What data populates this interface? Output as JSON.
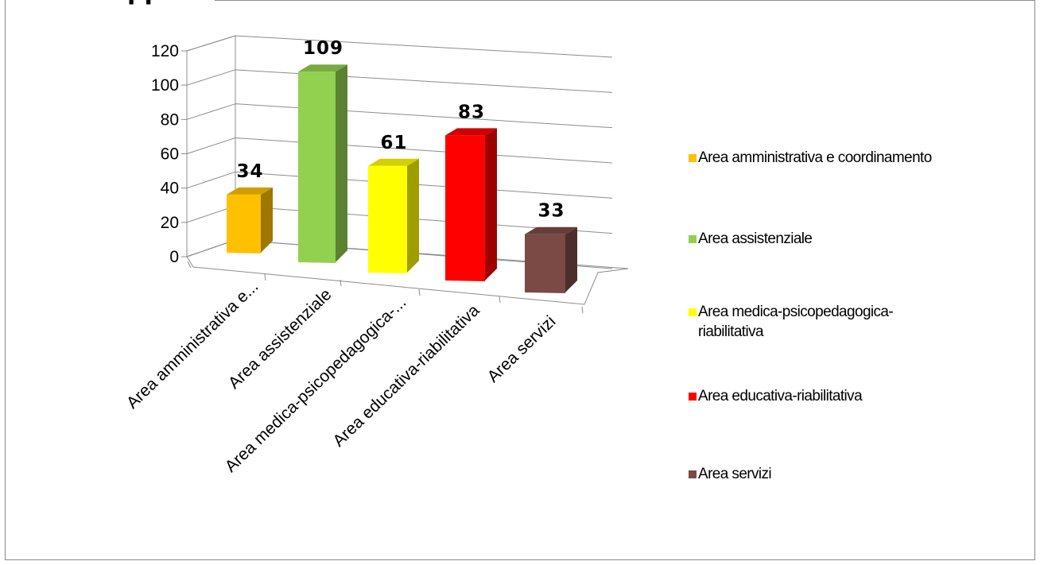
{
  "title_fragment": "pp",
  "chart_data": {
    "type": "bar",
    "three_d": true,
    "categories": [
      "Area amministrativa e coordinamento",
      "Area assistenziale",
      "Area medica-psicopedagogica-riabilitativa",
      "Area educativa-riabilitativa",
      "Area servizi"
    ],
    "category_labels": [
      "Area amministrativa e...",
      "Area assistenziale",
      "Area medica-psicopedagogica-...",
      "Area educativa-riabilitativa",
      "Area servizi"
    ],
    "values": [
      34,
      109,
      61,
      83,
      33
    ],
    "data_labels": [
      "34",
      "109",
      "61",
      "83",
      "33"
    ],
    "colors": [
      "#ffc000",
      "#92d050",
      "#ffff00",
      "#ff0000",
      "#7b4a45"
    ],
    "ylim": [
      0,
      120
    ],
    "yticks": [
      "0",
      "20",
      "40",
      "60",
      "80",
      "100",
      "120"
    ],
    "grid": true,
    "legend_position": "right",
    "legend": [
      "Area amministrativa e coordinamento",
      "Area assistenziale",
      "Area medica-psicopedagogica-riabilitativa",
      "Area educativa-riabilitativa",
      "Area servizi"
    ]
  }
}
